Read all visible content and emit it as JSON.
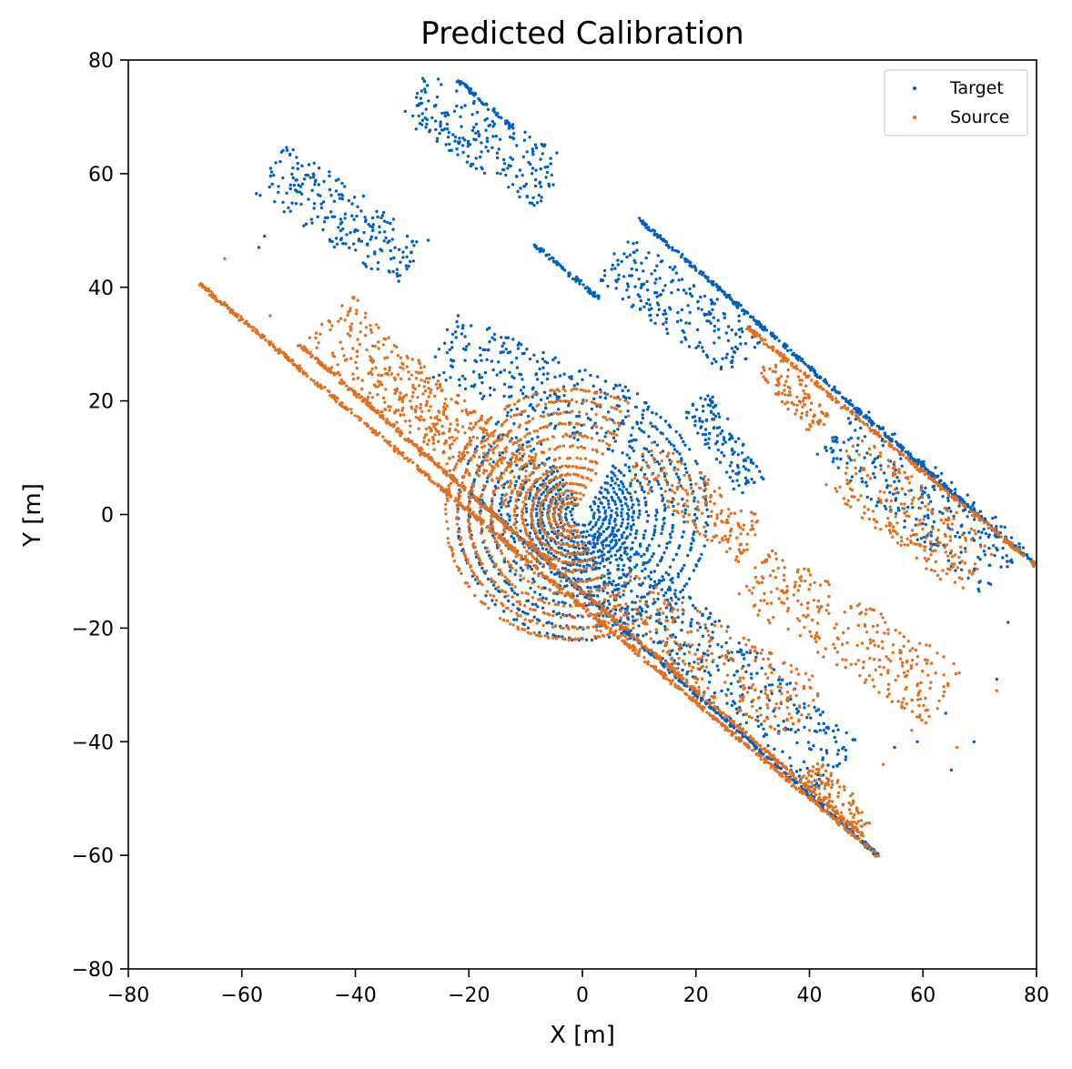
{
  "chart_data": {
    "type": "scatter",
    "title": "Predicted Calibration",
    "xlabel": "X [m]",
    "ylabel": "Y [m]",
    "xlim": [
      -80,
      80
    ],
    "ylim": [
      -80,
      80
    ],
    "xticks": [
      -80,
      -60,
      -40,
      -20,
      0,
      20,
      40,
      60,
      80
    ],
    "yticks": [
      -80,
      -60,
      -40,
      -20,
      0,
      20,
      40,
      60,
      80
    ],
    "tick_labels_x": [
      "−80",
      "−60",
      "−40",
      "−20",
      "0",
      "20",
      "40",
      "60",
      "80"
    ],
    "tick_labels_y": [
      "−80",
      "−60",
      "−40",
      "−20",
      "0",
      "20",
      "40",
      "60",
      "80"
    ],
    "grid": false,
    "legend_position": "top-right",
    "series": [
      {
        "name": "Target",
        "color": "#0060c0",
        "components": {
          "rings": {
            "center": [
              0,
              0
            ],
            "radii": [
              2,
              3,
              4,
              5,
              6,
              7,
              8,
              9,
              10,
              11.5,
              13,
              14.5,
              16,
              18,
              20,
              22
            ],
            "angle_range_deg": [
              -240,
              60
            ]
          },
          "far_edge_line": {
            "from": [
              10,
              52
            ],
            "to": [
              80,
              -9
            ]
          },
          "near_edge_line": {
            "from": [
              -20,
              4
            ],
            "to": [
              52,
              -60
            ]
          },
          "upper_line": {
            "from": [
              -22,
              76.5
            ],
            "to": [
              -12,
              68
            ]
          },
          "mid_line": {
            "from": [
              -9,
              48
            ],
            "to": [
              3,
              38
            ]
          },
          "structures": [
            {
              "label": "building-rows",
              "from": [
                5,
                45
              ],
              "to": [
                30,
                28
              ]
            },
            {
              "label": "clusters",
              "from": [
                -30,
                74
              ],
              "to": [
                -5,
                58
              ]
            },
            {
              "label": "clusters",
              "from": [
                -55,
                61
              ],
              "to": [
                -30,
                44
              ]
            },
            {
              "label": "clusters",
              "from": [
                -25,
                30
              ],
              "to": [
                10,
                15
              ]
            },
            {
              "label": "clusters",
              "from": [
                0,
                -5
              ],
              "to": [
                45,
                -45
              ]
            },
            {
              "label": "clusters",
              "from": [
                45,
                15
              ],
              "to": [
                75,
                -10
              ]
            },
            {
              "label": "clusters",
              "from": [
                20,
                20
              ],
              "to": [
                30,
                5
              ]
            }
          ],
          "isolated_points": [
            [
              -51,
              61
            ],
            [
              -50,
              58
            ],
            [
              -56,
              49
            ],
            [
              -57,
              47
            ],
            [
              -43,
              59
            ],
            [
              69,
              -40
            ],
            [
              75,
              -19
            ],
            [
              73,
              -29
            ],
            [
              64,
              -35
            ],
            [
              59,
              -40
            ],
            [
              55,
              -41
            ],
            [
              65,
              -45
            ]
          ]
        }
      },
      {
        "name": "Source",
        "color": "#e07020",
        "components": {
          "rings": {
            "center": [
              -2,
              0
            ],
            "radii": [
              2,
              3,
              4,
              5.5,
              7,
              8.5,
              10,
              12,
              14,
              16,
              18,
              20,
              22
            ],
            "angle_range_deg": [
              60,
              300
            ]
          },
          "far_edge_line": {
            "from": [
              29,
              33
            ],
            "to": [
              80,
              -9
            ]
          },
          "near_edge_line": {
            "from": [
              -68,
              41
            ],
            "to": [
              52,
              -60
            ]
          },
          "parallel_line": {
            "from": [
              -50,
              30
            ],
            "to": [
              50,
              -57
            ]
          },
          "structures": [
            {
              "label": "clusters",
              "from": [
                -45,
                35
              ],
              "to": [
                -20,
                10
              ]
            },
            {
              "label": "clusters",
              "from": [
                -32,
                23
              ],
              "to": [
                -10,
                5
              ]
            },
            {
              "label": "clusters",
              "from": [
                10,
                10
              ],
              "to": [
                30,
                -5
              ]
            },
            {
              "label": "clusters",
              "from": [
                5,
                -15
              ],
              "to": [
                40,
                -35
              ]
            },
            {
              "label": "clusters",
              "from": [
                30,
                -10
              ],
              "to": [
                64,
                -32
              ]
            },
            {
              "label": "clusters",
              "from": [
                33,
                27
              ],
              "to": [
                42,
                15
              ]
            },
            {
              "label": "clusters",
              "from": [
                45,
                10
              ],
              "to": [
                70,
                -10
              ]
            },
            {
              "label": "clusters",
              "from": [
                40,
                -45
              ],
              "to": [
                50,
                -55
              ]
            }
          ],
          "isolated_points": [
            [
              -63,
              45
            ],
            [
              -55,
              35
            ],
            [
              -43,
              34
            ],
            [
              66,
              -41
            ],
            [
              73,
              -31
            ],
            [
              58,
              -38
            ],
            [
              53,
              -44
            ],
            [
              40,
              -38
            ]
          ]
        }
      }
    ]
  }
}
